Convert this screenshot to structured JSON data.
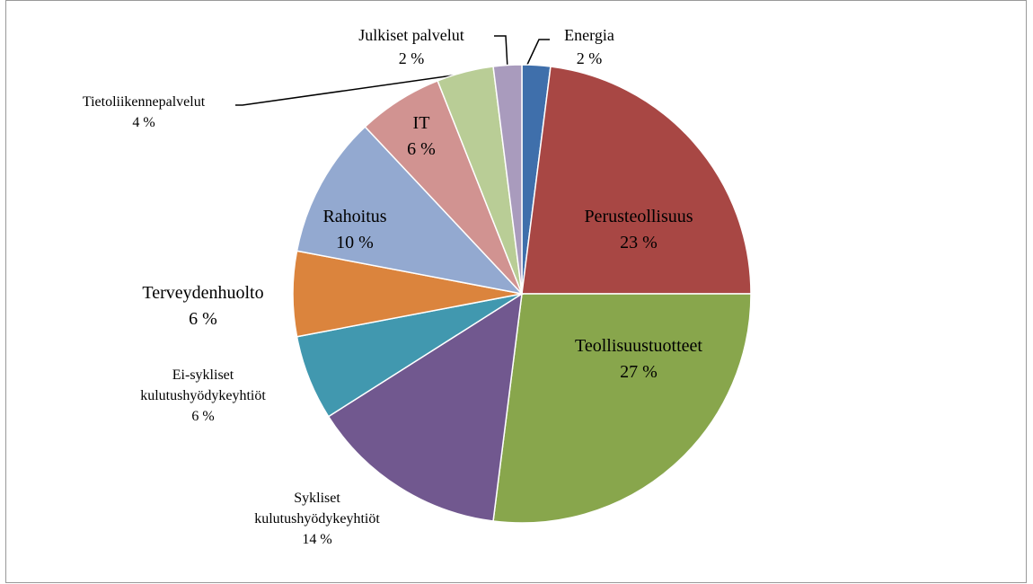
{
  "chart_data": {
    "type": "pie",
    "categories": [
      "Energia",
      "Perusteollisuus",
      "Teollisuustuotteet",
      "Sykliset kulutushyödykeyhtiöt",
      "Ei-sykliset kulutushyödykeyhtiöt",
      "Terveydenhuolto",
      "Rahoitus",
      "IT",
      "Tietoliikennepalvelut",
      "Julkiset palvelut"
    ],
    "values": [
      2,
      23,
      27,
      14,
      6,
      6,
      10,
      6,
      4,
      2
    ],
    "value_labels": [
      "2 %",
      "23 %",
      "27 %",
      "14 %",
      "6 %",
      "6 %",
      "10 %",
      "6 %",
      "4 %",
      "2 %"
    ],
    "colors": [
      "#3f6fab",
      "#a84744",
      "#88a64c",
      "#71588f",
      "#4198af",
      "#db843d",
      "#93a9d0",
      "#d19391",
      "#b9cd96",
      "#a99bbd"
    ]
  }
}
